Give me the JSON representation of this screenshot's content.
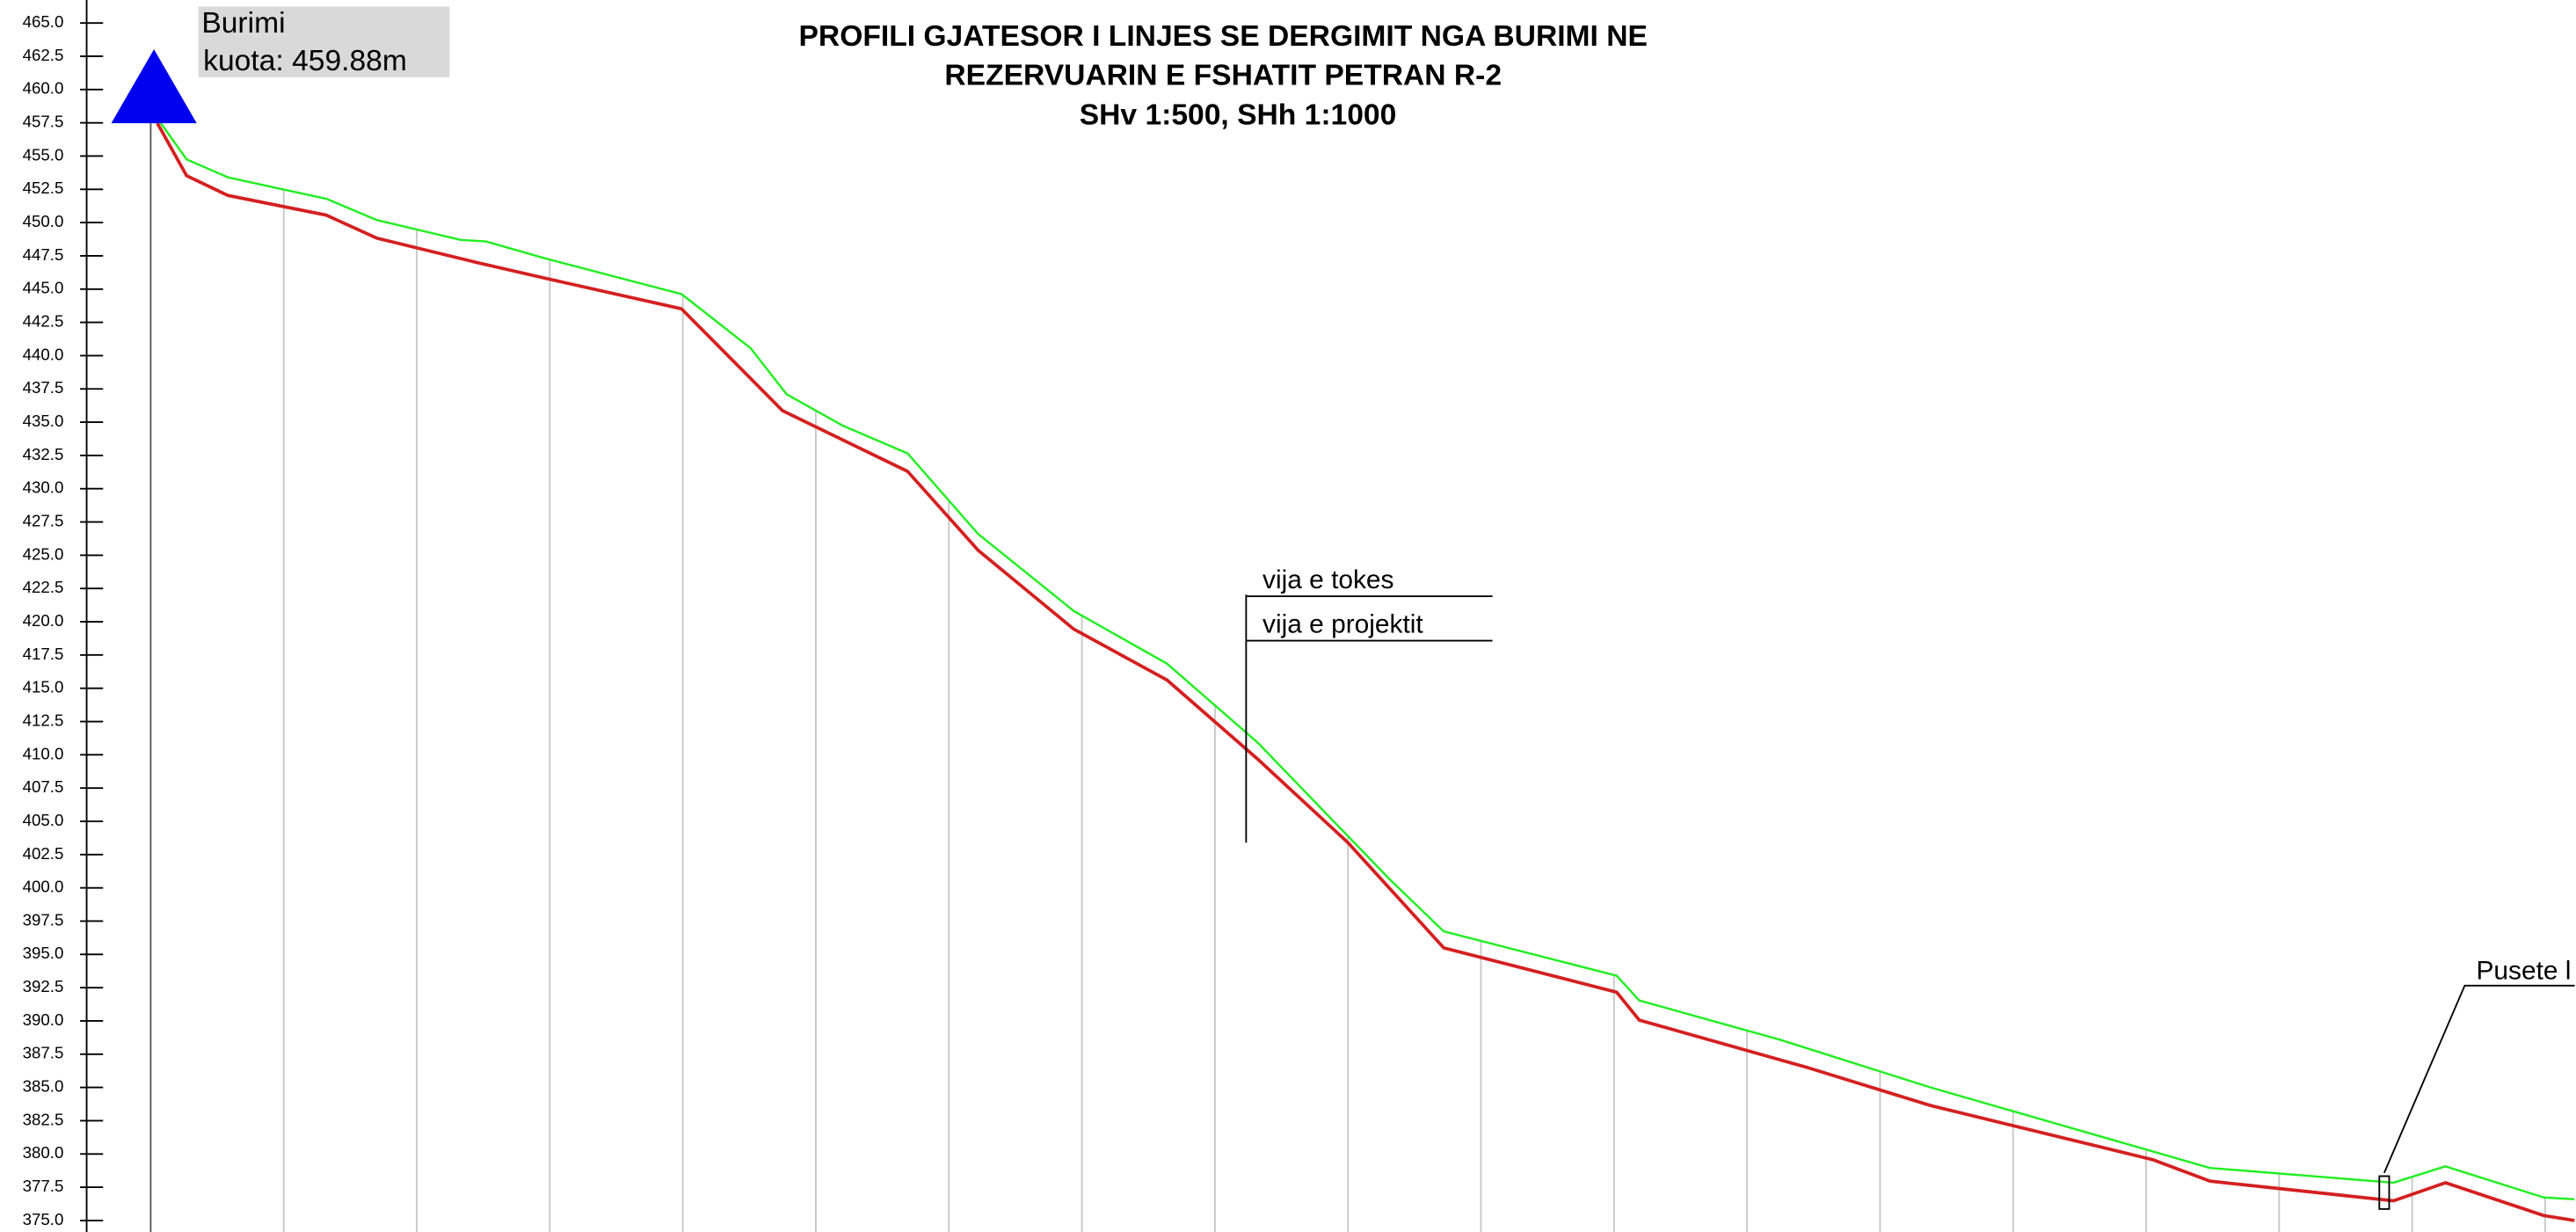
{
  "chart_data": {
    "type": "line",
    "title": [
      "PROFILI GJATESOR I LINJES SE DERGIMIT NGA BURIMI NE",
      "REZERVUARIN E FSHATIT PETRAN R-2",
      "SHv 1:500, SHh 1:1000"
    ],
    "annotations": {
      "source_name": "Burimi",
      "source_elevation": "kuota: 459.88m",
      "manhole": "Pusete l"
    },
    "xlim": [
      -0.48,
      18.22
    ],
    "xticks": [
      0,
      1,
      2,
      3,
      4,
      5,
      6,
      7,
      8,
      9,
      10,
      11,
      12,
      13,
      14,
      15,
      16,
      17,
      18
    ],
    "ylim": [
      375,
      465
    ],
    "yticks": [
      {
        "value": 465,
        "label": "465.0"
      },
      {
        "value": 462.5,
        "label": "462.5"
      },
      {
        "value": 460,
        "label": "460.0"
      },
      {
        "value": 457.5,
        "label": "457.5"
      },
      {
        "value": 455,
        "label": "455.0"
      },
      {
        "value": 452.5,
        "label": "452.5"
      },
      {
        "value": 450,
        "label": "450.0"
      },
      {
        "value": 447.5,
        "label": "447.5"
      },
      {
        "value": 445,
        "label": "445.0"
      },
      {
        "value": 442.5,
        "label": "442.5"
      },
      {
        "value": 440,
        "label": "440.0"
      },
      {
        "value": 437.5,
        "label": "437.5"
      },
      {
        "value": 435,
        "label": "435.0"
      },
      {
        "value": 432.5,
        "label": "432.5"
      },
      {
        "value": 430,
        "label": "430.0"
      },
      {
        "value": 427.5,
        "label": "427.5"
      },
      {
        "value": 425,
        "label": "425.0"
      },
      {
        "value": 422.5,
        "label": "422.5"
      },
      {
        "value": 420,
        "label": "420.0"
      },
      {
        "value": 417.5,
        "label": "417.5"
      },
      {
        "value": 415,
        "label": "415.0"
      },
      {
        "value": 412.5,
        "label": "412.5"
      },
      {
        "value": 410,
        "label": "410.0"
      },
      {
        "value": 407.5,
        "label": "407.5"
      },
      {
        "value": 405,
        "label": "405.0"
      },
      {
        "value": 402.5,
        "label": "402.5"
      },
      {
        "value": 400,
        "label": "400.0"
      },
      {
        "value": 397.5,
        "label": "397.5"
      },
      {
        "value": 395,
        "label": "395.0"
      },
      {
        "value": 392.5,
        "label": "392.5"
      },
      {
        "value": 390,
        "label": "390.0"
      },
      {
        "value": 387.5,
        "label": "387.5"
      },
      {
        "value": 385,
        "label": "385.0"
      },
      {
        "value": 382.5,
        "label": "382.5"
      },
      {
        "value": 380,
        "label": "380.0"
      },
      {
        "value": 377.5,
        "label": "377.5"
      },
      {
        "value": 375,
        "label": "375.0"
      }
    ],
    "series": [
      {
        "name": "vija e tokes",
        "color": "#22ee22",
        "x": [
          0.05,
          0.27,
          0.58,
          1.32,
          1.7,
          2.33,
          2.52,
          2.95,
          3.99,
          4.51,
          4.78,
          5.2,
          5.69,
          6.22,
          6.94,
          7.64,
          8.32,
          9.31,
          9.72,
          11.02,
          11.19,
          12.25,
          13.38,
          15.48,
          16.86,
          17.25,
          17.99,
          18.22
        ],
        "values": [
          457.84,
          454.75,
          453.4,
          451.79,
          450.19,
          448.7,
          448.58,
          447.35,
          444.63,
          440.56,
          437.1,
          434.75,
          432.65,
          426.6,
          420.8,
          416.85,
          410.93,
          400.68,
          396.73,
          393.4,
          391.54,
          388.58,
          385.0,
          378.95,
          377.84,
          379.07,
          376.73,
          376.6
        ]
      },
      {
        "name": "vija e projektit",
        "color": "#d42020",
        "x": [
          0.05,
          0.27,
          0.58,
          1.32,
          1.7,
          2.46,
          3.0,
          3.99,
          4.75,
          5.69,
          6.22,
          6.94,
          7.64,
          8.32,
          9.0,
          9.72,
          11.02,
          11.19,
          12.46,
          13.38,
          15.05,
          15.48,
          16.86,
          17.25,
          17.99,
          18.22
        ],
        "values": [
          457.47,
          453.52,
          452.04,
          450.56,
          448.83,
          446.98,
          445.74,
          443.52,
          435.86,
          431.3,
          425.37,
          419.44,
          415.62,
          409.69,
          403.4,
          395.49,
          392.16,
          390.06,
          386.48,
          383.64,
          379.57,
          377.96,
          376.48,
          377.84,
          375.37,
          375.0
        ]
      }
    ]
  }
}
